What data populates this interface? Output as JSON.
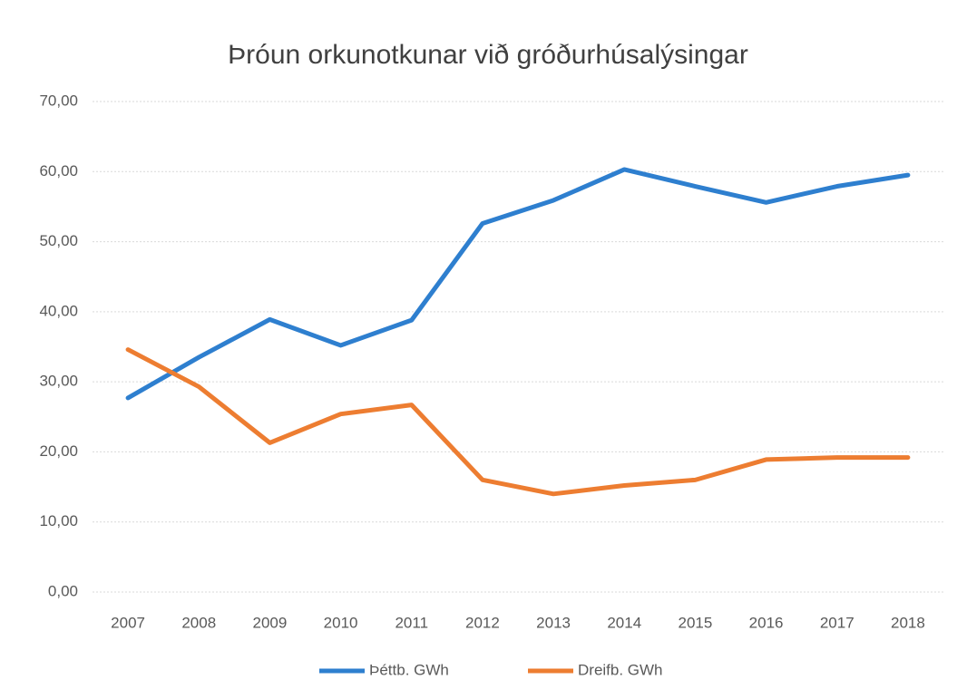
{
  "chart_data": {
    "type": "line",
    "title": "Þróun orkunotkunar við gróðurhúsalýsingar",
    "categories": [
      "2007",
      "2008",
      "2009",
      "2010",
      "2011",
      "2012",
      "2013",
      "2014",
      "2015",
      "2016",
      "2017",
      "2018"
    ],
    "series": [
      {
        "name": "Þéttb. GWh",
        "color": "#2e7fcf",
        "values": [
          27.7,
          33.5,
          38.9,
          35.2,
          38.8,
          52.6,
          55.9,
          60.3,
          57.9,
          55.6,
          57.9,
          59.5
        ]
      },
      {
        "name": "Dreifb. GWh",
        "color": "#ed7d31",
        "values": [
          34.6,
          29.3,
          21.3,
          25.4,
          26.7,
          16.0,
          14.0,
          15.2,
          16.0,
          18.9,
          19.2,
          19.2
        ]
      }
    ],
    "ylim": [
      0,
      70
    ],
    "yticks": [
      {
        "value": 0,
        "label": "0,00"
      },
      {
        "value": 10,
        "label": "10,00"
      },
      {
        "value": 20,
        "label": "20,00"
      },
      {
        "value": 30,
        "label": "30,00"
      },
      {
        "value": 40,
        "label": "40,00"
      },
      {
        "value": 50,
        "label": "50,00"
      },
      {
        "value": 60,
        "label": "60,00"
      },
      {
        "value": 70,
        "label": "70,00"
      }
    ],
    "grid": true,
    "legend": "bottom"
  }
}
